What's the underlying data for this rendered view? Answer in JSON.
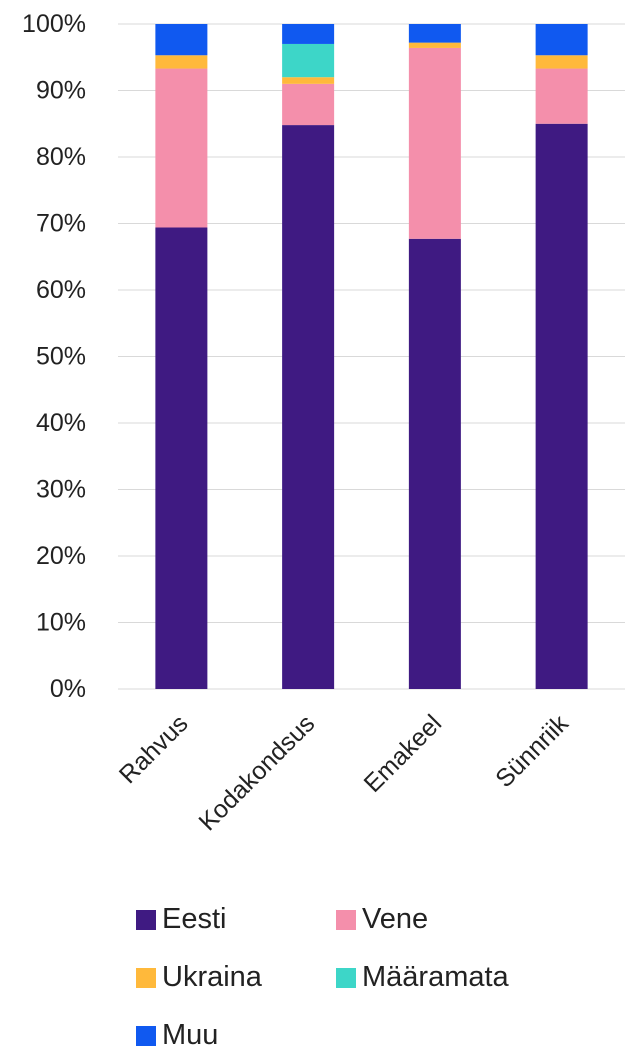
{
  "chart_data": {
    "type": "bar",
    "stacked": true,
    "categories": [
      "Rahvus",
      "Kodakondsus",
      "Emakeel",
      "Sünnriik"
    ],
    "series": [
      {
        "name": "Eesti",
        "color": "#3f1a82",
        "values": [
          69.4,
          84.8,
          67.7,
          85.0
        ]
      },
      {
        "name": "Vene",
        "color": "#f48fab",
        "values": [
          23.9,
          6.2,
          28.7,
          8.3
        ]
      },
      {
        "name": "Ukraina",
        "color": "#ffb93b",
        "values": [
          2.0,
          1.0,
          0.8,
          2.0
        ]
      },
      {
        "name": "Määramata",
        "color": "#3dd6c8",
        "values": [
          0.0,
          5.0,
          0.0,
          0.0
        ]
      },
      {
        "name": "Muu",
        "color": "#1059f0",
        "values": [
          4.7,
          3.0,
          2.8,
          4.7
        ]
      }
    ],
    "yticks": [
      "0%",
      "10%",
      "20%",
      "30%",
      "40%",
      "50%",
      "60%",
      "70%",
      "80%",
      "90%",
      "100%"
    ],
    "ylim": [
      0,
      100
    ],
    "grid": true,
    "legend_position": "bottom"
  }
}
